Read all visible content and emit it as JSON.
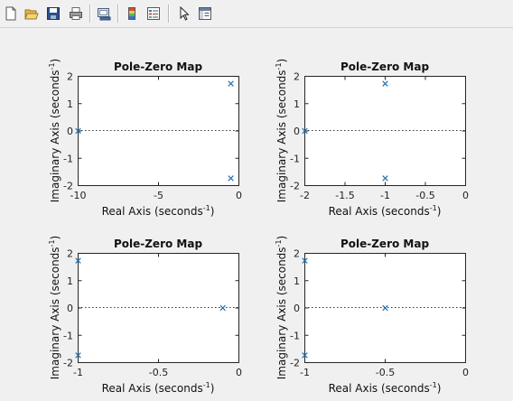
{
  "toolbar": {
    "buttons": [
      {
        "id": "new-figure",
        "icon": "new-figure-icon"
      },
      {
        "id": "open-file",
        "icon": "open-folder-icon"
      },
      {
        "id": "save-figure",
        "icon": "save-disk-icon"
      },
      {
        "id": "print-figure",
        "icon": "printer-icon"
      },
      {
        "id": "link-plot",
        "icon": "link-plot-icon"
      },
      {
        "id": "insert-colorbar",
        "icon": "colorbar-icon"
      },
      {
        "id": "insert-legend",
        "icon": "legend-icon"
      },
      {
        "id": "edit-plot",
        "icon": "pointer-arrow-icon"
      },
      {
        "id": "property-inspector",
        "icon": "plot-tools-icon"
      }
    ]
  },
  "colors": {
    "marker": "#1f6fb2",
    "background": "#f0f0f0",
    "axes": "#ffffff"
  },
  "chart_data": [
    {
      "type": "scatter",
      "title": "Pole-Zero Map",
      "xlabel": "Real Axis (seconds",
      "ylabel": "Imaginary Axis (seconds",
      "label_exponent": "-1",
      "xlim": [
        -10,
        0
      ],
      "ylim": [
        -2,
        2
      ],
      "xticks": [
        -10,
        -5,
        0
      ],
      "xtick_labels": [
        "-10",
        "-5",
        "0"
      ],
      "yticks": [
        -2,
        -1,
        0,
        1,
        2
      ],
      "ytick_labels": [
        "-2",
        "-1",
        "0",
        "1",
        "2"
      ],
      "poles": [
        {
          "x": -10,
          "y": 0
        },
        {
          "x": -0.5,
          "y": 1.732
        },
        {
          "x": -0.5,
          "y": -1.732
        }
      ]
    },
    {
      "type": "scatter",
      "title": "Pole-Zero Map",
      "xlabel": "Real Axis (seconds",
      "ylabel": "Imaginary Axis (seconds",
      "label_exponent": "-1",
      "xlim": [
        -2,
        0
      ],
      "ylim": [
        -2,
        2
      ],
      "xticks": [
        -2,
        -1.5,
        -1,
        -0.5,
        0
      ],
      "xtick_labels": [
        "-2",
        "-1.5",
        "-1",
        "-0.5",
        "0"
      ],
      "yticks": [
        -2,
        -1,
        0,
        1,
        2
      ],
      "ytick_labels": [
        "-2",
        "-1",
        "0",
        "1",
        "2"
      ],
      "poles": [
        {
          "x": -2,
          "y": 0
        },
        {
          "x": -1,
          "y": 1.732
        },
        {
          "x": -1,
          "y": -1.732
        }
      ]
    },
    {
      "type": "scatter",
      "title": "Pole-Zero Map",
      "xlabel": "Real Axis (seconds",
      "ylabel": "Imaginary Axis (seconds",
      "label_exponent": "-1",
      "xlim": [
        -1,
        0
      ],
      "ylim": [
        -2,
        2
      ],
      "xticks": [
        -1,
        -0.5,
        0
      ],
      "xtick_labels": [
        "-1",
        "-0.5",
        "0"
      ],
      "yticks": [
        -2,
        -1,
        0,
        1,
        2
      ],
      "ytick_labels": [
        "-2",
        "-1",
        "0",
        "1",
        "2"
      ],
      "poles": [
        {
          "x": -1,
          "y": 1.732
        },
        {
          "x": -1,
          "y": -1.732
        },
        {
          "x": -0.1,
          "y": 0
        }
      ]
    },
    {
      "type": "scatter",
      "title": "Pole-Zero Map",
      "xlabel": "Real Axis (seconds",
      "ylabel": "Imaginary Axis (seconds",
      "label_exponent": "-1",
      "xlim": [
        -1,
        0
      ],
      "ylim": [
        -2,
        2
      ],
      "xticks": [
        -1,
        -0.5,
        0
      ],
      "xtick_labels": [
        "-1",
        "-0.5",
        "0"
      ],
      "yticks": [
        -2,
        -1,
        0,
        1,
        2
      ],
      "ytick_labels": [
        "-2",
        "-1",
        "0",
        "1",
        "2"
      ],
      "poles": [
        {
          "x": -1,
          "y": 1.732
        },
        {
          "x": -1,
          "y": -1.732
        },
        {
          "x": -0.5,
          "y": 0
        }
      ]
    }
  ]
}
